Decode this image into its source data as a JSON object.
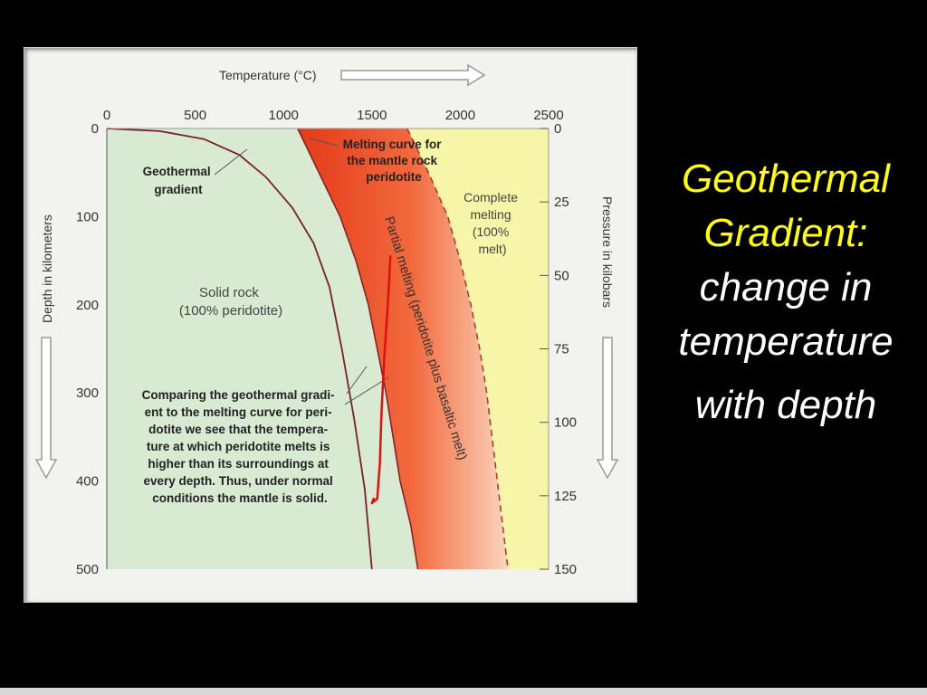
{
  "chart_data": {
    "type": "area",
    "x_axis": {
      "label": "Temperature (°C)",
      "range": [
        0,
        2500
      ],
      "ticks": [
        "0",
        "500",
        "1000",
        "1500",
        "2000",
        "2500"
      ]
    },
    "y_axis_left": {
      "label": "Depth in kilometers",
      "range": [
        0,
        500
      ],
      "ticks": [
        "0",
        "100",
        "200",
        "300",
        "400",
        "500"
      ]
    },
    "y_axis_right": {
      "label": "Pressure in kilobars",
      "range": [
        0,
        150
      ],
      "ticks": [
        "0",
        "25",
        "50",
        "75",
        "100",
        "125",
        "150"
      ]
    },
    "series": [
      {
        "name": "Geothermal gradient",
        "points": [
          [
            0,
            0
          ],
          [
            300,
            3
          ],
          [
            550,
            12
          ],
          [
            750,
            30
          ],
          [
            900,
            55
          ],
          [
            1050,
            90
          ],
          [
            1170,
            130
          ],
          [
            1260,
            180
          ],
          [
            1330,
            250
          ],
          [
            1400,
            330
          ],
          [
            1460,
            410
          ],
          [
            1500,
            500
          ]
        ]
      },
      {
        "name": "Melting curve for the mantle rock peridotite",
        "points": [
          [
            1080,
            0
          ],
          [
            1200,
            50
          ],
          [
            1320,
            100
          ],
          [
            1410,
            150
          ],
          [
            1480,
            200
          ],
          [
            1530,
            250
          ],
          [
            1580,
            300
          ],
          [
            1620,
            350
          ],
          [
            1660,
            400
          ],
          [
            1720,
            450
          ],
          [
            1760,
            500
          ]
        ]
      },
      {
        "name": "Complete melting",
        "points": [
          [
            1700,
            0
          ],
          [
            1820,
            50
          ],
          [
            1930,
            100
          ],
          [
            2000,
            150
          ],
          [
            2060,
            200
          ],
          [
            2110,
            250
          ],
          [
            2150,
            300
          ],
          [
            2180,
            350
          ],
          [
            2210,
            400
          ],
          [
            2240,
            450
          ],
          [
            2270,
            500
          ]
        ]
      }
    ],
    "regions": [
      {
        "label": "Solid rock",
        "sublabel": "(100% peridotite)",
        "color": "#d9ead2"
      },
      {
        "label": "Partial melting (peridotite plus basaltic melt)",
        "color": "#f04a24"
      },
      {
        "label": "Complete melting (100% melt)",
        "color": "#f7f6a8"
      }
    ],
    "annotations": [
      {
        "text_lines": [
          "Geothermal",
          "gradient"
        ]
      },
      {
        "text_lines": [
          "Melting curve for",
          "the mantle rock",
          "peridotite"
        ]
      },
      {
        "text_lines": [
          "Complete",
          "melting",
          "(100%",
          "melt)"
        ]
      },
      {
        "text_lines": [
          "Solid rock",
          "(100% peridotite)"
        ]
      },
      {
        "text_lines": [
          "Comparing the geothermal gradi-",
          "ent to the melting curve for peri-",
          "dotite we see that the tempera-",
          "ture at which peridotite melts is",
          "higher than its surroundings at",
          "every depth. Thus, under normal",
          "conditions the mantle is solid."
        ]
      }
    ],
    "partial_melting_label": "Partial melting (peridotite plus basaltic melt)",
    "handwritten_mark": {
      "color": "#e01010",
      "points": [
        [
          1605,
          145
        ],
        [
          1590,
          200
        ],
        [
          1570,
          260
        ],
        [
          1555,
          320
        ],
        [
          1545,
          380
        ],
        [
          1530,
          420
        ],
        [
          1500,
          425
        ],
        [
          1510,
          420
        ]
      ]
    },
    "colors": {
      "solid_rock": "#d9ead2",
      "complete_melt": "#f7f6a8",
      "melt_dark": "#e8421c",
      "melt_light": "#fbd0b4",
      "curve": "#7a1f2b"
    }
  },
  "side_panel": {
    "line1": "Geothermal",
    "line2": "Gradient:",
    "line3": "change in",
    "line4": "temperature",
    "line5": "with depth"
  }
}
